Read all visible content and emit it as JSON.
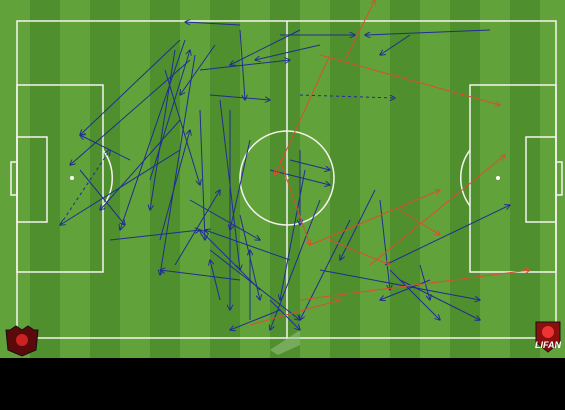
{
  "logos": {
    "right": "LIFAN"
  }
}
